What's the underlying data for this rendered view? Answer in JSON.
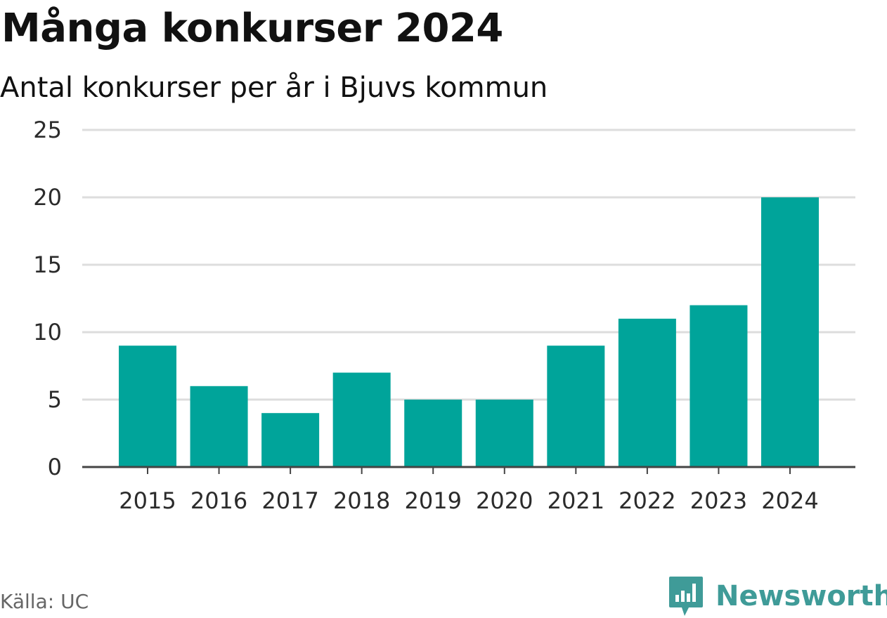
{
  "title": "Många konkurser 2024",
  "subtitle": "Antal konkurser per år i Bjuvs kommun",
  "source": "Källa: UC",
  "brand": {
    "name": "Newsworthy",
    "icon": "newsworthy-logo-icon",
    "color": "#3f9b98"
  },
  "colors": {
    "bar": "#00a49a",
    "grid": "#dddddd",
    "axis": "#444444"
  },
  "chart_data": {
    "type": "bar",
    "title": "Många konkurser 2024",
    "subtitle": "Antal konkurser per år i Bjuvs kommun",
    "categories": [
      "2015",
      "2016",
      "2017",
      "2018",
      "2019",
      "2020",
      "2021",
      "2022",
      "2023",
      "2024"
    ],
    "values": [
      9,
      6,
      4,
      7,
      5,
      5,
      9,
      11,
      12,
      20
    ],
    "yticks": [
      0,
      5,
      10,
      15,
      20,
      25
    ],
    "ylim": [
      0,
      25
    ],
    "grid": true,
    "legend": "none"
  }
}
